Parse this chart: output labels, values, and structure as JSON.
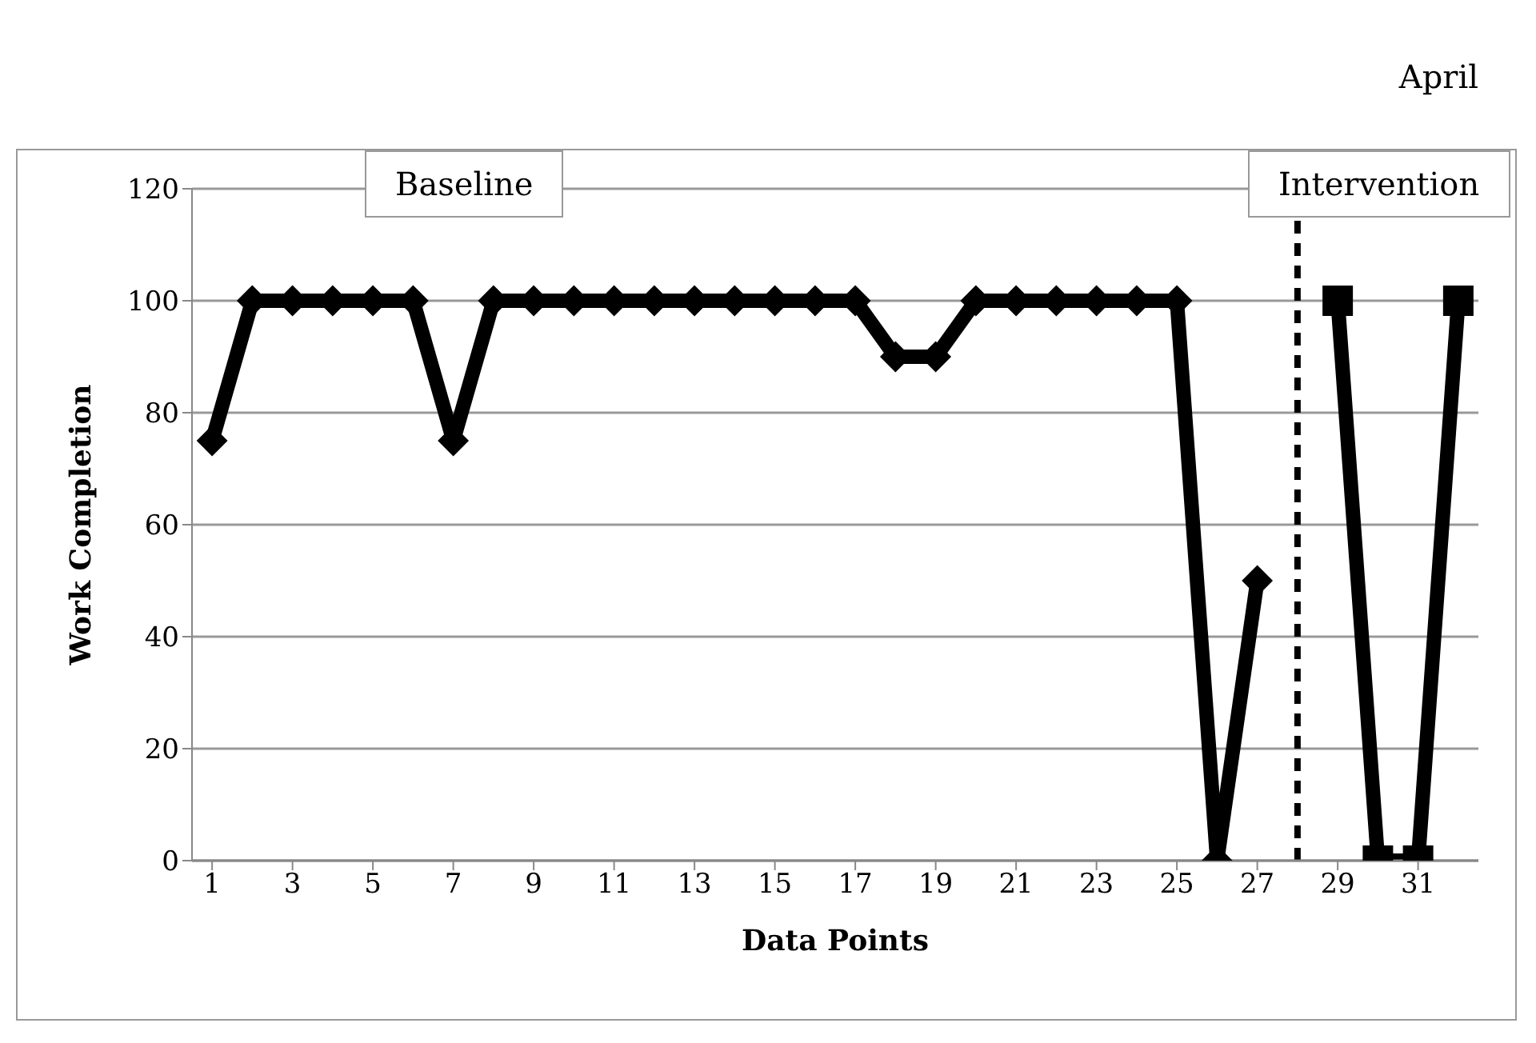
{
  "chart_data": {
    "type": "line",
    "title": "April",
    "xlabel": "Data Points",
    "ylabel": "Work Completion",
    "annotations": [
      "Baseline",
      "Intervention"
    ],
    "series": [
      {
        "color": "#000000",
        "marker": "diamond",
        "x": [
          1,
          2,
          3,
          4,
          5,
          6,
          7,
          8,
          9,
          10,
          11,
          12,
          13,
          14,
          15,
          16,
          17,
          18,
          19,
          20,
          21,
          22,
          23,
          24,
          25,
          26,
          27
        ],
        "values": [
          75,
          100,
          100,
          100,
          100,
          100,
          75,
          100,
          100,
          100,
          100,
          100,
          100,
          100,
          100,
          100,
          100,
          90,
          90,
          100,
          100,
          100,
          100,
          100,
          100,
          0,
          50
        ]
      },
      {
        "color": "#000000",
        "marker": "square",
        "x": [
          29,
          30,
          31,
          32
        ],
        "values": [
          100,
          0,
          0,
          100
        ]
      }
    ],
    "xlim": [
      0.5,
      32.5
    ],
    "xticks": [
      1,
      3,
      5,
      7,
      9,
      11,
      13,
      15,
      17,
      19,
      21,
      23,
      25,
      27,
      29,
      31
    ],
    "ylim": [
      0,
      120
    ],
    "yticks": [
      0,
      20,
      40,
      60,
      80,
      100,
      120
    ],
    "grid": "y",
    "line_style": "solid",
    "ref_lines": [
      {
        "axis": "x",
        "value": 28,
        "color": "#000000",
        "line_style": "dashed"
      }
    ]
  }
}
